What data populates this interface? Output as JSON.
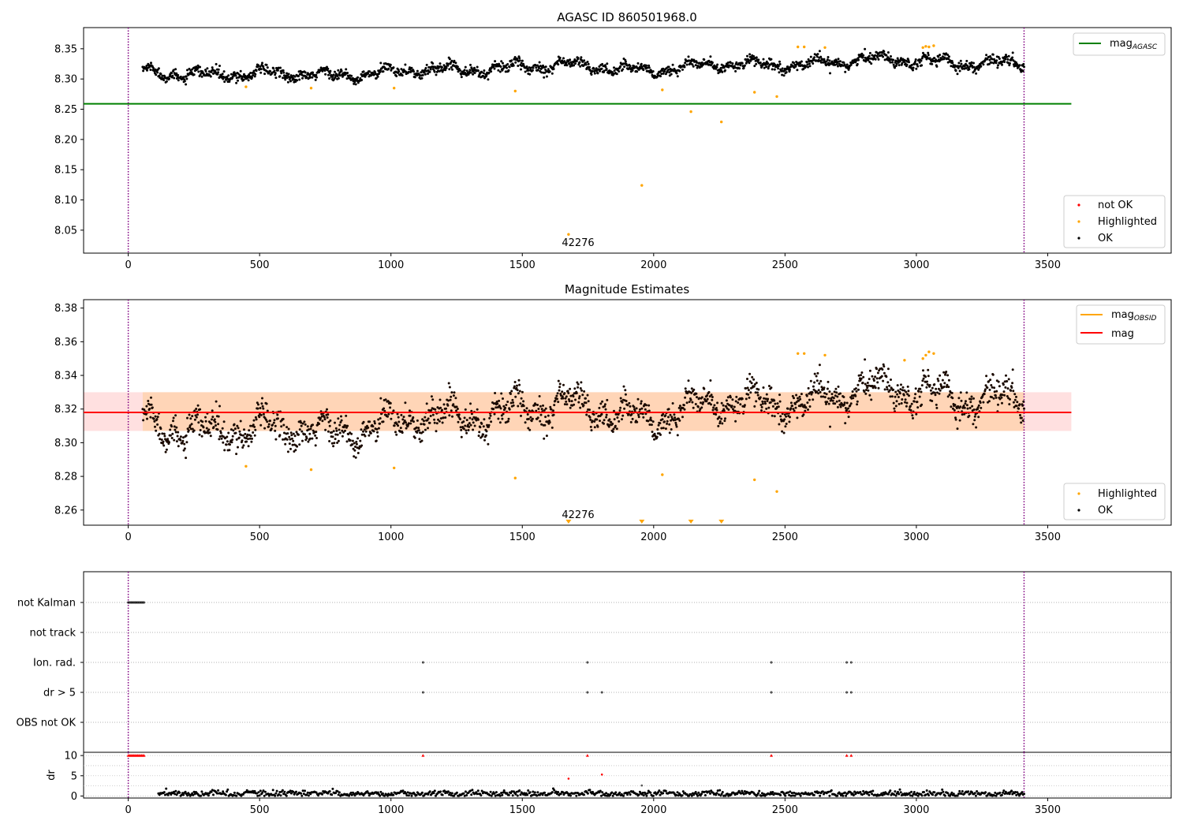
{
  "chart_data": [
    {
      "type": "scatter",
      "title": "AGASC ID 860501968.0",
      "xlim": [
        -170,
        3970
      ],
      "ylim": [
        8.012,
        8.385
      ],
      "xticks": [
        0,
        500,
        1000,
        1500,
        2000,
        2500,
        3000,
        3500
      ],
      "yticks": [
        8.05,
        8.1,
        8.15,
        8.2,
        8.25,
        8.3,
        8.35
      ],
      "vlines": [
        0,
        3410
      ],
      "mag_agasc": 8.259,
      "mag_agasc_xrange": [
        -170,
        3590
      ],
      "ok_points": {
        "x_range": [
          55,
          3410
        ],
        "count": 1800,
        "baseline": 8.313,
        "trend": [
          [
            55,
            8.312
          ],
          [
            500,
            8.306
          ],
          [
            1000,
            8.31
          ],
          [
            1500,
            8.322
          ],
          [
            2000,
            8.317
          ],
          [
            2500,
            8.325
          ],
          [
            3000,
            8.333
          ],
          [
            3400,
            8.322
          ]
        ]
      },
      "highlighted": [
        {
          "x": 448,
          "y": 8.287
        },
        {
          "x": 696,
          "y": 8.285
        },
        {
          "x": 1012,
          "y": 8.285
        },
        {
          "x": 1473,
          "y": 8.28
        },
        {
          "x": 1676,
          "y": 8.043
        },
        {
          "x": 1955,
          "y": 8.124
        },
        {
          "x": 2033,
          "y": 8.282
        },
        {
          "x": 2142,
          "y": 8.246
        },
        {
          "x": 2258,
          "y": 8.229
        },
        {
          "x": 2384,
          "y": 8.278
        },
        {
          "x": 2469,
          "y": 8.271
        },
        {
          "x": 2549,
          "y": 8.353
        },
        {
          "x": 2573,
          "y": 8.353
        },
        {
          "x": 2652,
          "y": 8.352
        },
        {
          "x": 3025,
          "y": 8.352
        },
        {
          "x": 3036,
          "y": 8.354
        },
        {
          "x": 3048,
          "y": 8.353
        },
        {
          "x": 3066,
          "y": 8.355
        }
      ],
      "annotation": {
        "text": "42276",
        "x": 1710,
        "y": 8.03
      },
      "legend_lines": [
        {
          "label_main": "mag",
          "label_sub": "AGASC",
          "color": "#008000"
        }
      ],
      "legend_points": [
        {
          "label": "not OK",
          "color": "#ff0000"
        },
        {
          "label": "Highlighted",
          "color": "#ffa500"
        },
        {
          "label": "OK",
          "color": "#000000"
        }
      ]
    },
    {
      "type": "scatter",
      "title": "Magnitude Estimates",
      "xlim": [
        -170,
        3970
      ],
      "ylim": [
        8.251,
        8.385
      ],
      "xticks": [
        0,
        500,
        1000,
        1500,
        2000,
        2500,
        3000,
        3500
      ],
      "yticks": [
        8.26,
        8.28,
        8.3,
        8.32,
        8.34,
        8.36,
        8.38
      ],
      "vlines": [
        0,
        3410
      ],
      "mag": 8.318,
      "mag_band": [
        8.307,
        8.33
      ],
      "mag_band_xrange": [
        -170,
        3590
      ],
      "obsid_band": [
        8.307,
        8.33
      ],
      "obsid_band_xrange": [
        55,
        3410
      ],
      "ok_points": {
        "x_range": [
          55,
          3410
        ],
        "count": 1800,
        "baseline": 8.313,
        "trend": [
          [
            55,
            8.312
          ],
          [
            500,
            8.306
          ],
          [
            1000,
            8.31
          ],
          [
            1500,
            8.322
          ],
          [
            2000,
            8.317
          ],
          [
            2500,
            8.325
          ],
          [
            3000,
            8.333
          ],
          [
            3400,
            8.322
          ]
        ]
      },
      "highlighted": [
        {
          "x": 448,
          "y": 8.286
        },
        {
          "x": 696,
          "y": 8.284
        },
        {
          "x": 1012,
          "y": 8.285
        },
        {
          "x": 1473,
          "y": 8.279
        },
        {
          "x": 2033,
          "y": 8.281
        },
        {
          "x": 2384,
          "y": 8.278
        },
        {
          "x": 2469,
          "y": 8.271
        },
        {
          "x": 2549,
          "y": 8.353
        },
        {
          "x": 2573,
          "y": 8.353
        },
        {
          "x": 2652,
          "y": 8.352
        },
        {
          "x": 3025,
          "y": 8.35
        },
        {
          "x": 3036,
          "y": 8.352
        },
        {
          "x": 3048,
          "y": 8.354
        },
        {
          "x": 3066,
          "y": 8.353
        },
        {
          "x": 2955,
          "y": 8.349
        }
      ],
      "out_of_range_markers": [
        1676,
        1955,
        2142,
        2258
      ],
      "annotation": {
        "text": "42276",
        "x": 1710,
        "y": 8.256
      },
      "legend_lines": [
        {
          "label_main": "mag",
          "label_sub": "OBSID",
          "color": "#ffa500"
        },
        {
          "label_main": "mag",
          "label_sub": "",
          "color": "#ff0000"
        }
      ],
      "legend_points": [
        {
          "label": "Highlighted",
          "color": "#ffa500"
        },
        {
          "label": "OK",
          "color": "#000000"
        }
      ]
    },
    {
      "type": "scatter",
      "title": "",
      "xlim": [
        -170,
        3970
      ],
      "vlines": [
        0,
        3410
      ],
      "flag_rows": [
        "not Kalman",
        "not track",
        "Ion. rad.",
        "dr > 5",
        "OBS not OK"
      ],
      "flags": {
        "not Kalman": [
          0,
          5,
          10,
          15,
          20,
          25,
          30,
          35,
          40,
          45,
          50,
          55,
          60
        ],
        "not track": [],
        "Ion. rad.": [
          1122,
          1748,
          2448,
          2735,
          2752
        ],
        "dr > 5": [
          1122,
          1748,
          1803,
          2448,
          2735,
          2752
        ],
        "OBS not OK": []
      }
    },
    {
      "type": "scatter",
      "title": "",
      "ylabel": "dr",
      "xlim": [
        -170,
        3970
      ],
      "ylim": [
        -0.5,
        10.8
      ],
      "xticks": [
        0,
        500,
        1000,
        1500,
        2000,
        2500,
        3000,
        3500
      ],
      "yticks": [
        0,
        5,
        10
      ],
      "vlines": [
        0,
        3410
      ],
      "capped_points": [
        0,
        5,
        10,
        15,
        20,
        25,
        30,
        35,
        40,
        45,
        50,
        55,
        60,
        1122,
        1748,
        2448,
        2735,
        2752
      ],
      "red_points": [
        {
          "x": 1676,
          "y": 4.3
        },
        {
          "x": 1803,
          "y": 5.3
        }
      ],
      "gray_points": [
        {
          "x": 1955,
          "y": 2.6
        }
      ],
      "ok_points": {
        "x_range": [
          55,
          3410
        ],
        "count": 900,
        "mean": 0.6
      }
    }
  ]
}
